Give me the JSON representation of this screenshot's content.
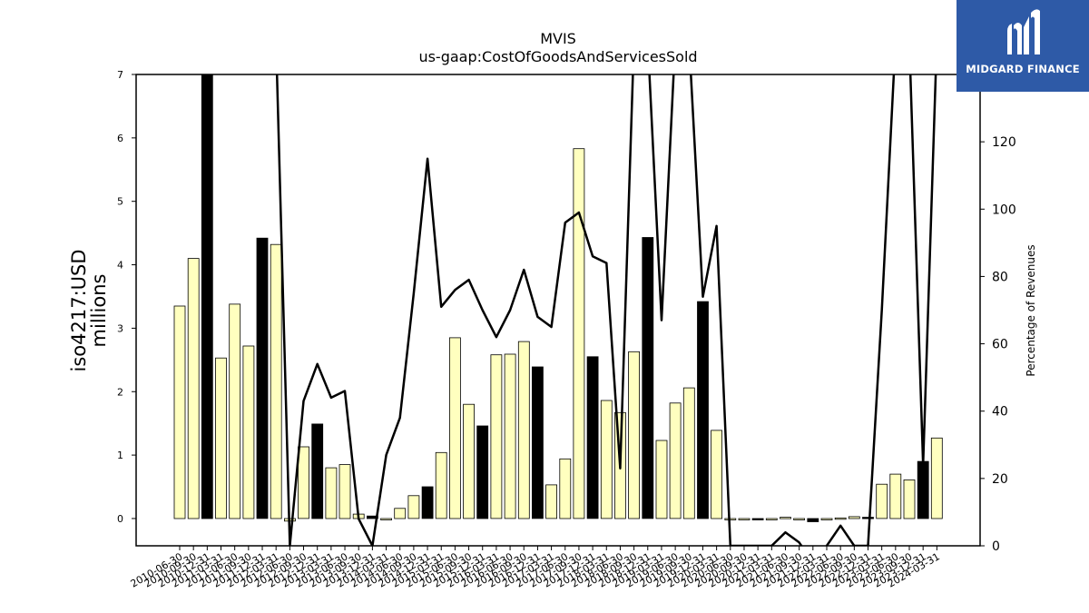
{
  "chart_data": {
    "type": "bar",
    "title": "MVIS",
    "subtitle": "us-gaap:CostOfGoodsAndServicesSold",
    "ylabel": "iso4217:USD\nmillions",
    "y2label": "Percentage of Revenues",
    "ylim": [
      -0.43,
      7
    ],
    "y2lim": [
      0,
      140
    ],
    "yticks": [
      0,
      1,
      2,
      3,
      4,
      5,
      6,
      7
    ],
    "y2ticks": [
      0,
      20,
      40,
      60,
      80,
      100,
      120
    ],
    "categories": [
      "2010-06-30",
      "2010-09-30",
      "2010-12-31",
      "2011-03-31",
      "2011-06-30",
      "2011-09-30",
      "2011-12-31",
      "2012-03-31",
      "2012-06-30",
      "2012-09-30",
      "2012-12-31",
      "2013-03-31",
      "2013-06-30",
      "2013-09-30",
      "2013-12-31",
      "2014-03-31",
      "2014-06-30",
      "2014-09-30",
      "2014-12-31",
      "2015-03-31",
      "2015-06-30",
      "2015-09-30",
      "2015-12-31",
      "2016-03-31",
      "2016-06-30",
      "2016-09-30",
      "2016-12-31",
      "2017-03-31",
      "2017-06-30",
      "2017-09-30",
      "2017-12-31",
      "2018-03-31",
      "2018-06-30",
      "2018-09-30",
      "2018-12-31",
      "2019-03-31",
      "2019-06-30",
      "2019-09-30",
      "2019-12-31",
      "2020-03-31",
      "2020-06-30",
      "2020-09-30",
      "2020-12-31",
      "2021-03-31",
      "2021-06-30",
      "2021-09-30",
      "2021-12-31",
      "2022-03-31",
      "2022-06-30",
      "2022-09-30",
      "2022-12-31",
      "2023-03-31",
      "2023-06-30",
      "2023-09-30",
      "2023-12-31",
      "2024-03-31"
    ],
    "series": [
      {
        "type": "bar",
        "values": [
          3.35,
          4.1,
          7.0,
          2.53,
          3.38,
          2.72,
          4.42,
          4.32,
          -0.04,
          1.13,
          1.49,
          0.8,
          0.85,
          0.07,
          0.04,
          -0.02,
          0.16,
          0.36,
          0.5,
          1.04,
          2.85,
          1.8,
          1.46,
          2.58,
          2.59,
          2.79,
          2.39,
          0.53,
          0.94,
          5.83,
          2.55,
          1.86,
          1.67,
          2.63,
          4.43,
          1.23,
          1.82,
          2.06,
          3.42,
          1.39,
          -0.01,
          -0.01,
          -0.01,
          -0.02,
          0.02,
          -0.01,
          -0.05,
          -0.01,
          0.01,
          0.03,
          0.02,
          0.54,
          0.7,
          0.61,
          0.9,
          1.27
        ],
        "highlight": [
          false,
          false,
          true,
          false,
          false,
          false,
          true,
          false,
          false,
          false,
          true,
          false,
          false,
          false,
          true,
          false,
          false,
          false,
          true,
          false,
          false,
          false,
          true,
          false,
          false,
          false,
          true,
          false,
          false,
          false,
          true,
          false,
          false,
          false,
          true,
          false,
          false,
          false,
          true,
          false,
          false,
          false,
          true,
          false,
          false,
          false,
          true,
          false,
          false,
          false,
          true,
          false,
          false,
          false,
          true,
          false
        ]
      },
      {
        "type": "line",
        "axis": "right",
        "values": [
          null,
          null,
          null,
          null,
          null,
          null,
          null,
          150,
          0,
          43,
          54,
          44,
          46,
          8,
          0,
          27,
          38,
          75,
          115,
          71,
          76,
          79,
          70,
          62,
          70,
          82,
          68,
          65,
          96,
          99,
          86,
          84,
          23,
          150,
          150,
          67,
          150,
          150,
          74,
          95,
          0,
          0,
          0,
          0,
          4,
          1,
          -5,
          0,
          6,
          0,
          0,
          70,
          150,
          150,
          24,
          150
        ]
      }
    ],
    "colors": {
      "bar_fill": "#ffffbf",
      "bar_highlight": "#000000",
      "bar_edge": "#000000",
      "line": "#000000"
    }
  },
  "logo": {
    "text": "MIDGARD FINANCE",
    "icon": "midgard-finance-logo-icon",
    "color": "#2e5aa7"
  }
}
